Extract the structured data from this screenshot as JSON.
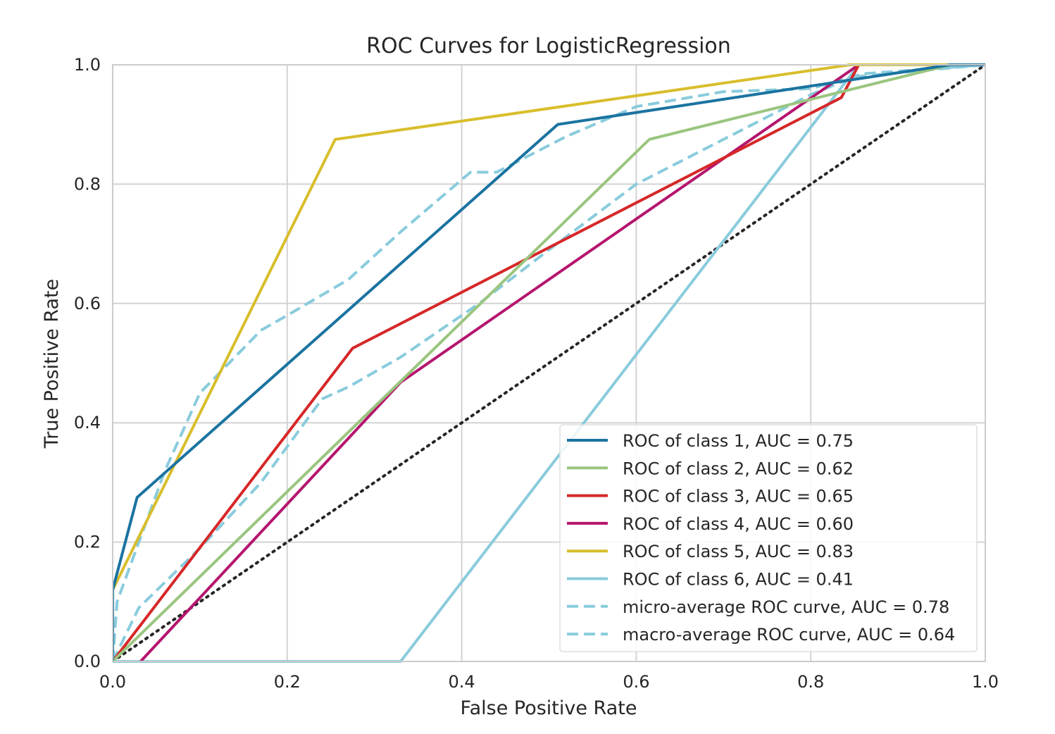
{
  "chart_data": {
    "type": "line",
    "title": "ROC Curves for LogisticRegression",
    "xlabel": "False Positive Rate",
    "ylabel": "True Positive Rate",
    "xlim": [
      0.0,
      1.0
    ],
    "ylim": [
      0.0,
      1.0
    ],
    "xticks": [
      "0.0",
      "0.2",
      "0.4",
      "0.6",
      "0.8",
      "1.0"
    ],
    "yticks": [
      "0.0",
      "0.2",
      "0.4",
      "0.6",
      "0.8",
      "1.0"
    ],
    "grid": true,
    "legend_position": "lower-right",
    "series": [
      {
        "name": "ROC of class 1, AUC = 0.75",
        "color": "#1a73a0",
        "dash": "solid",
        "x": [
          0.0,
          0.0,
          0.028,
          0.51,
          0.96,
          1.0
        ],
        "y": [
          0.0,
          0.12,
          0.275,
          0.9,
          1.0,
          1.0
        ]
      },
      {
        "name": "ROC of class 2, AUC = 0.62",
        "color": "#9ac57f",
        "dash": "solid",
        "x": [
          0.0,
          0.615,
          0.96,
          1.0
        ],
        "y": [
          0.0,
          0.875,
          1.0,
          1.0
        ]
      },
      {
        "name": "ROC of class 3, AUC = 0.65",
        "color": "#d62728",
        "dash": "solid",
        "x": [
          0.0,
          0.275,
          0.835,
          0.855,
          1.0
        ],
        "y": [
          0.0,
          0.525,
          0.945,
          1.0,
          1.0
        ]
      },
      {
        "name": "ROC of class 4, AUC = 0.60",
        "color": "#b5156e",
        "dash": "solid",
        "x": [
          0.032,
          0.33,
          0.855,
          1.0
        ],
        "y": [
          0.0,
          0.468,
          1.0,
          1.0
        ]
      },
      {
        "name": "ROC of class 5, AUC = 0.83",
        "color": "#d8be2c",
        "dash": "solid",
        "x": [
          0.0,
          0.0,
          0.255,
          0.845,
          1.0
        ],
        "y": [
          0.0,
          0.12,
          0.875,
          1.0,
          1.0
        ]
      },
      {
        "name": "ROC of class 6, AUC = 0.41",
        "color": "#89cbdc",
        "dash": "solid",
        "x": [
          0.0,
          0.33,
          0.855,
          1.0
        ],
        "y": [
          0.0,
          0.0,
          1.0,
          1.0
        ]
      },
      {
        "name": "micro-average ROC curve, AUC = 0.78",
        "color": "#89cbdc",
        "dash": "dashed",
        "x": [
          0.0,
          0.005,
          0.02,
          0.06,
          0.1,
          0.17,
          0.2,
          0.27,
          0.33,
          0.41,
          0.44,
          0.52,
          0.6,
          0.7,
          0.8,
          0.86,
          1.0
        ],
        "y": [
          0.0,
          0.1,
          0.16,
          0.32,
          0.45,
          0.555,
          0.58,
          0.64,
          0.72,
          0.82,
          0.82,
          0.88,
          0.93,
          0.955,
          0.96,
          0.985,
          1.0
        ]
      },
      {
        "name": "macro-average ROC curve, AUC = 0.64",
        "color": "#89cbdc",
        "dash": "dashed",
        "x": [
          0.0,
          0.03,
          0.1,
          0.17,
          0.24,
          0.27,
          0.33,
          0.42,
          0.5,
          0.6,
          0.7,
          0.8,
          0.85,
          1.0
        ],
        "y": [
          0.0,
          0.09,
          0.19,
          0.3,
          0.44,
          0.46,
          0.51,
          0.6,
          0.69,
          0.8,
          0.875,
          0.95,
          0.98,
          1.0
        ]
      }
    ],
    "diagonal": {
      "x": [
        0.0,
        1.0
      ],
      "y": [
        0.0,
        1.0
      ],
      "color": "#262626",
      "dash": "dotted"
    }
  }
}
